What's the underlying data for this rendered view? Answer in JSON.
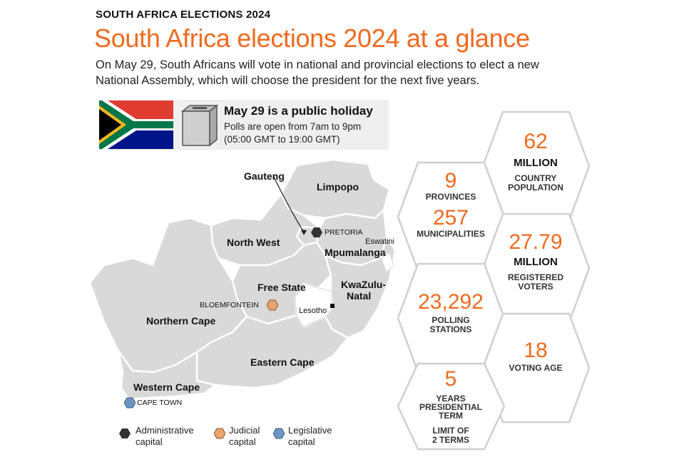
{
  "header": {
    "kicker": "SOUTH AFRICA ELECTIONS 2024",
    "title": "South Africa elections 2024 at a glance",
    "lede": "On May 29, South Africans will vote in national and provincial elections to elect a new National Assembly, which will choose the president for the next five years."
  },
  "holiday": {
    "title": "May 29 is a public holiday",
    "line1": "Polls are open from 7am to 9pm",
    "line2": "(05:00 GMT to 19:00 GMT)"
  },
  "map": {
    "provinces": {
      "limpopo": "Limpopo",
      "gauteng": "Gauteng",
      "north_west": "North West",
      "mpumalanga": "Mpumalanga",
      "free_state": "Free State",
      "kwazulu_1": "KwaZulu-",
      "kwazulu_2": "Natal",
      "northern_cape": "Northern Cape",
      "eastern_cape": "Eastern Cape",
      "western_cape": "Western Cape"
    },
    "neighbours": {
      "eswatini": "Eswatini",
      "lesotho": "Lesotho"
    },
    "cities": {
      "pretoria": "PRETORIA",
      "bloemfontein": "BLOEMFONTEIN",
      "cape_town": "CAPE TOWN"
    }
  },
  "legend": [
    {
      "line1": "Administrative",
      "line2": "capital",
      "color": "#333333"
    },
    {
      "line1": "Judicial",
      "line2": "capital",
      "color": "#e9a36d"
    },
    {
      "line1": "Legislative",
      "line2": "capital",
      "color": "#6c95c0"
    }
  ],
  "stats": {
    "population": {
      "value": "62",
      "unit": "MILLION",
      "label1": "COUNTRY",
      "label2": "POPULATION"
    },
    "provinces": {
      "value": "9",
      "label": "PROVINCES"
    },
    "municipalities": {
      "value": "257",
      "label": "MUNICIPALITIES"
    },
    "voters": {
      "value": "27.79",
      "unit": "MILLION",
      "label1": "REGISTERED",
      "label2": "VOTERS"
    },
    "polling": {
      "value": "23,292",
      "label1": "POLLING",
      "label2": "STATIONS"
    },
    "voting_age": {
      "value": "18",
      "label": "VOTING AGE"
    },
    "term": {
      "value": "5",
      "label1": "YEARS",
      "label2": "PRESIDENTIAL",
      "label3": "TERM",
      "limit1": "LIMIT OF",
      "limit2": "2 TERMS"
    }
  },
  "colors": {
    "accent": "#ef6a1f",
    "map_fill": "#d9d9d9",
    "map_stroke": "#ffffff",
    "hex_stroke": "#cfcfcf"
  }
}
